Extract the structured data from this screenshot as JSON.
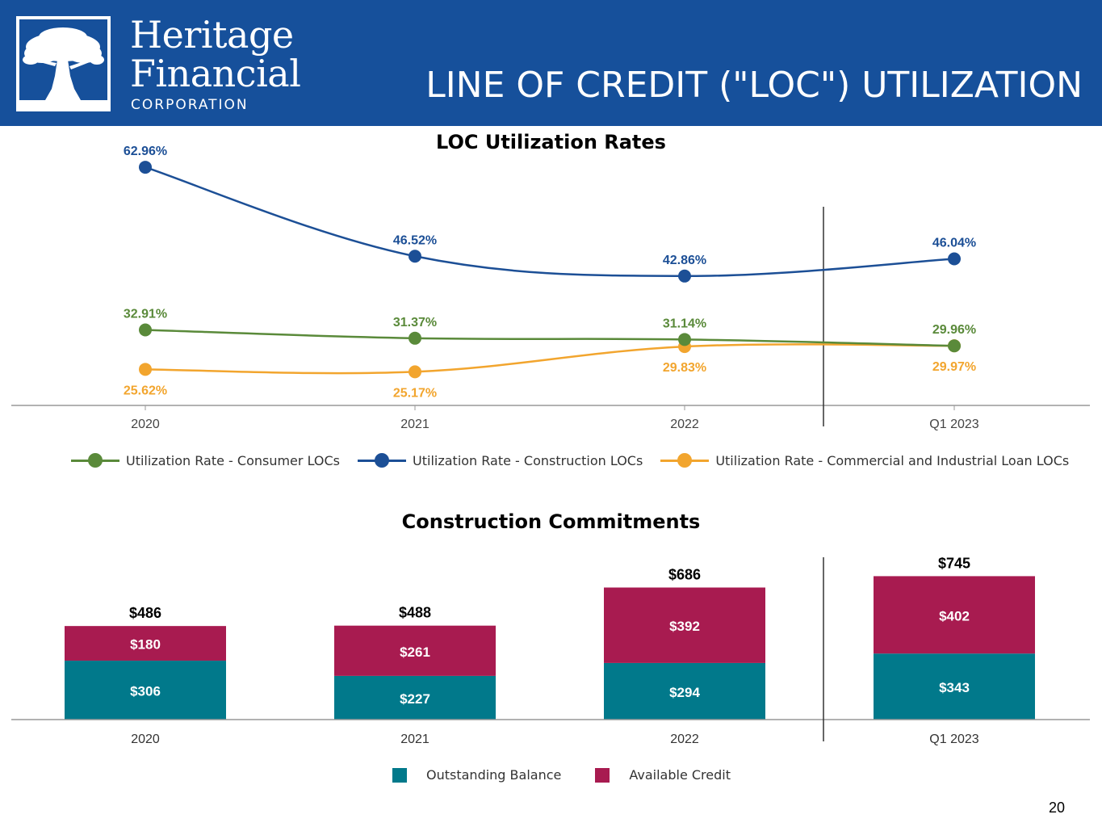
{
  "header": {
    "brand_line1": "Heritage",
    "brand_line2": "Financial",
    "brand_line3": "CORPORATION",
    "title": "LINE OF CREDIT (\"LOC\") UTILIZATION",
    "background_color": "#16509b",
    "logo_icon": "oak-tree-icon"
  },
  "page_number": "20",
  "chart_data": [
    {
      "type": "line",
      "title": "LOC Utilization Rates",
      "categories": [
        "2020",
        "2021",
        "2022",
        "Q1 2023"
      ],
      "ylim": [
        20,
        67
      ],
      "series": [
        {
          "name": "Utilization Rate - Consumer LOCs",
          "color": "#5a8a3a",
          "values": [
            32.91,
            31.37,
            31.14,
            29.96
          ],
          "labels": [
            "32.91%",
            "31.37%",
            "31.14%",
            "29.96%"
          ]
        },
        {
          "name": "Utilization Rate - Construction LOCs",
          "color": "#1c4f96",
          "values": [
            62.96,
            46.52,
            42.86,
            46.04
          ],
          "labels": [
            "62.96%",
            "46.52%",
            "42.86%",
            "46.04%"
          ]
        },
        {
          "name": "Utilization Rate - Commercial and Industrial Loan LOCs",
          "color": "#f2a52e",
          "values": [
            25.62,
            25.17,
            29.83,
            29.97
          ],
          "labels": [
            "25.62%",
            "25.17%",
            "29.83%",
            "29.97%"
          ]
        }
      ],
      "legend_position": "bottom",
      "divider_before": "Q1 2023"
    },
    {
      "type": "bar",
      "stacked": true,
      "title": "Construction Commitments",
      "categories": [
        "2020",
        "2021",
        "2022",
        "Q1 2023"
      ],
      "ylim": [
        0,
        860
      ],
      "series": [
        {
          "name": "Outstanding Balance",
          "color": "#01798b",
          "values": [
            306,
            227,
            294,
            343
          ],
          "labels": [
            "$306",
            "$227",
            "$294",
            "$343"
          ]
        },
        {
          "name": "Available Credit",
          "color": "#a81b50",
          "values": [
            180,
            261,
            392,
            402
          ],
          "labels": [
            "$180",
            "$261",
            "$392",
            "$402"
          ]
        }
      ],
      "totals": [
        486,
        488,
        686,
        745
      ],
      "total_labels": [
        "$486",
        "$488",
        "$686",
        "$745"
      ],
      "legend_position": "bottom",
      "divider_before": "Q1 2023"
    }
  ]
}
